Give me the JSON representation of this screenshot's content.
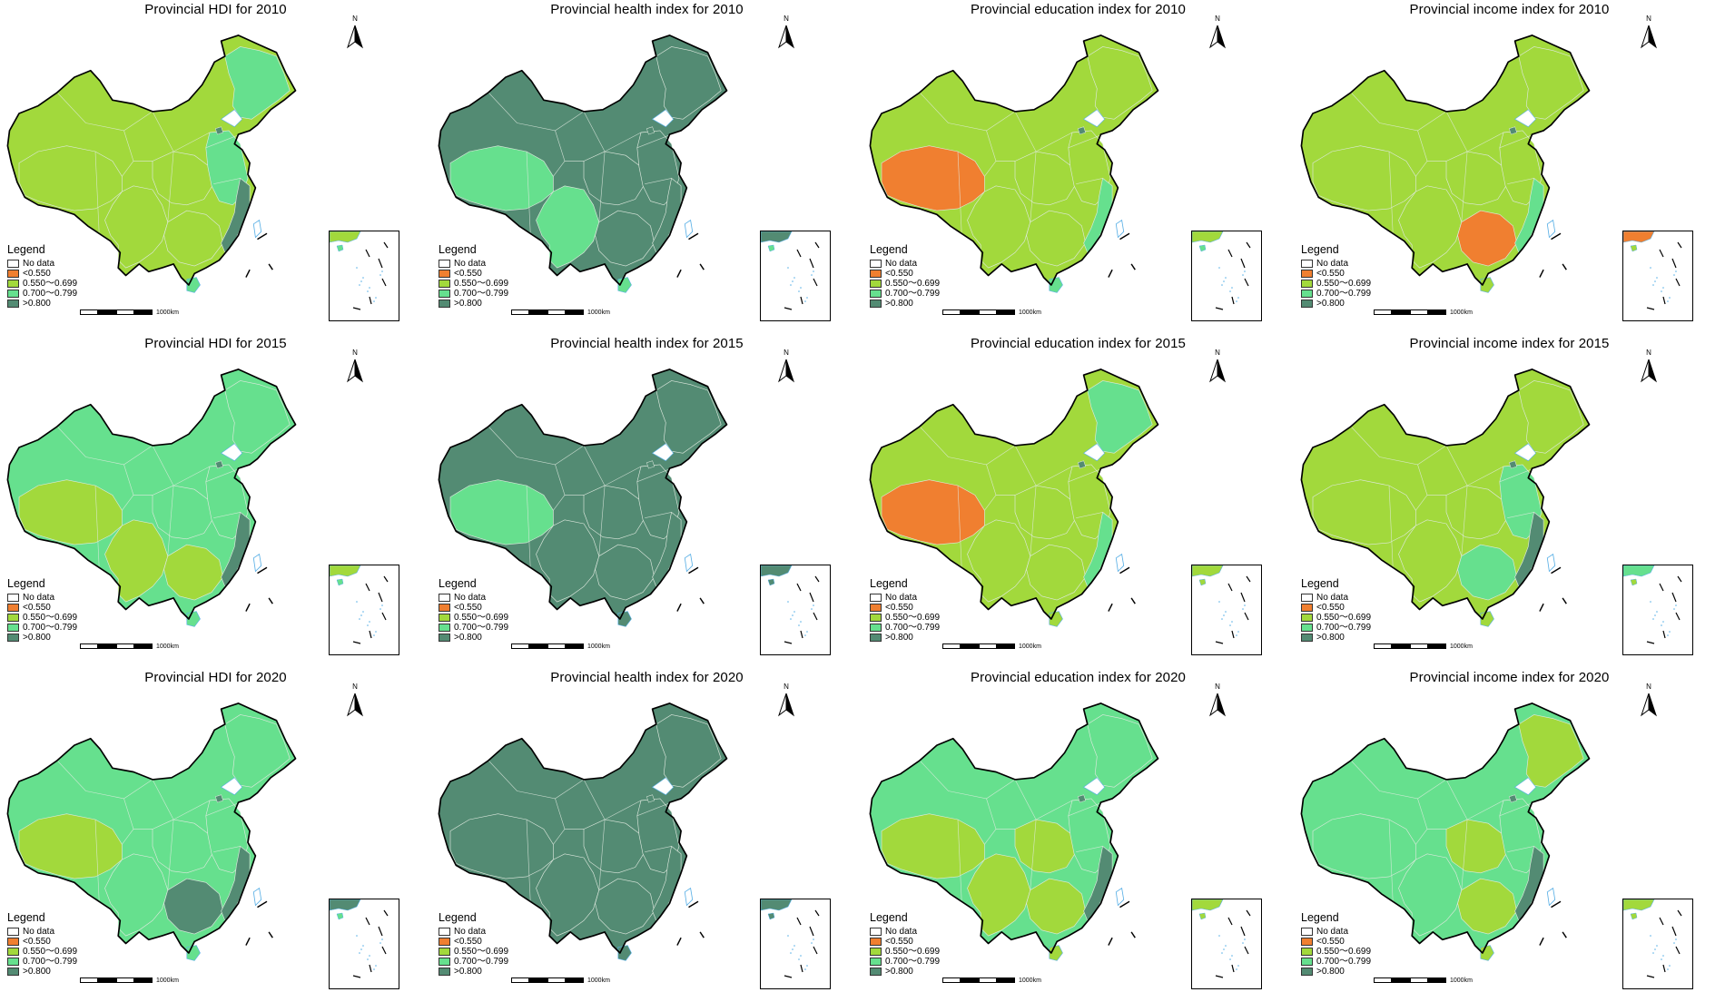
{
  "colors": {
    "nodata": "#ffffff",
    "lt550": "#f07f30",
    "c550_699": "#a2d93c",
    "c700_799": "#66e08e",
    "gt800": "#538b73"
  },
  "legend": {
    "title": "Legend",
    "items": [
      {
        "label": "No data",
        "key": "nodata"
      },
      {
        "label": "<0.550",
        "key": "lt550"
      },
      {
        "label": "0.550～0.699",
        "key": "c550_699"
      },
      {
        "label": "0.700～0.799",
        "key": "c700_799"
      },
      {
        "label": ">0.800",
        "key": "gt800"
      }
    ]
  },
  "scale_label": "1000km",
  "north_label": "N",
  "panels": [
    {
      "title": "Provincial HDI for 2010",
      "base": "c550_699",
      "regions": {
        "east": "c700_799",
        "central": "c550_699",
        "south": "c550_699",
        "southwest": "c550_699",
        "tibet": "c550_699",
        "northeast": "c700_799",
        "coast": "gt800",
        "island": "c700_799"
      }
    },
    {
      "title": "Provincial health index for 2010",
      "base": "gt800",
      "regions": {
        "east": "gt800",
        "central": "gt800",
        "south": "gt800",
        "southwest": "c700_799",
        "tibet": "c700_799",
        "northeast": "gt800",
        "coast": "gt800",
        "island": "c700_799"
      }
    },
    {
      "title": "Provincial education index for 2010",
      "base": "c550_699",
      "regions": {
        "east": "c550_699",
        "central": "c550_699",
        "south": "c550_699",
        "southwest": "c550_699",
        "tibet": "lt550",
        "northeast": "c550_699",
        "coast": "c700_799",
        "island": "c700_799"
      }
    },
    {
      "title": "Provincial income index for 2010",
      "base": "c550_699",
      "regions": {
        "east": "c550_699",
        "central": "c550_699",
        "south": "lt550",
        "southwest": "c550_699",
        "tibet": "c550_699",
        "northeast": "c550_699",
        "coast": "c700_799",
        "island": "c550_699"
      }
    },
    {
      "title": "Provincial HDI for 2015",
      "base": "c700_799",
      "regions": {
        "east": "c700_799",
        "central": "c700_799",
        "south": "c550_699",
        "southwest": "c550_699",
        "tibet": "c550_699",
        "northeast": "c700_799",
        "coast": "gt800",
        "island": "c700_799"
      }
    },
    {
      "title": "Provincial health index for 2015",
      "base": "gt800",
      "regions": {
        "east": "gt800",
        "central": "gt800",
        "south": "gt800",
        "southwest": "gt800",
        "tibet": "c700_799",
        "northeast": "gt800",
        "coast": "gt800",
        "island": "gt800"
      }
    },
    {
      "title": "Provincial education index for 2015",
      "base": "c550_699",
      "regions": {
        "east": "c550_699",
        "central": "c550_699",
        "south": "c550_699",
        "southwest": "c550_699",
        "tibet": "lt550",
        "northeast": "c700_799",
        "coast": "c700_799",
        "island": "c550_699"
      }
    },
    {
      "title": "Provincial income index for 2015",
      "base": "c550_699",
      "regions": {
        "east": "c700_799",
        "central": "c550_699",
        "south": "c700_799",
        "southwest": "c550_699",
        "tibet": "c550_699",
        "northeast": "c550_699",
        "coast": "gt800",
        "island": "c550_699"
      }
    },
    {
      "title": "Provincial HDI for 2020",
      "base": "c700_799",
      "regions": {
        "east": "c700_799",
        "central": "c700_799",
        "south": "gt800",
        "southwest": "c700_799",
        "tibet": "c550_699",
        "northeast": "c700_799",
        "coast": "gt800",
        "island": "c700_799"
      }
    },
    {
      "title": "Provincial health index for 2020",
      "base": "gt800",
      "regions": {
        "east": "gt800",
        "central": "gt800",
        "south": "gt800",
        "southwest": "gt800",
        "tibet": "gt800",
        "northeast": "gt800",
        "coast": "gt800",
        "island": "gt800"
      }
    },
    {
      "title": "Provincial education index for 2020",
      "base": "c700_799",
      "regions": {
        "east": "c700_799",
        "central": "c550_699",
        "south": "c550_699",
        "southwest": "c550_699",
        "tibet": "c550_699",
        "northeast": "c700_799",
        "coast": "gt800",
        "island": "c550_699"
      }
    },
    {
      "title": "Provincial income index for 2020",
      "base": "c700_799",
      "regions": {
        "east": "c700_799",
        "central": "c550_699",
        "south": "c550_699",
        "southwest": "c700_799",
        "tibet": "c700_799",
        "northeast": "c550_699",
        "coast": "gt800",
        "island": "c550_699"
      }
    }
  ]
}
